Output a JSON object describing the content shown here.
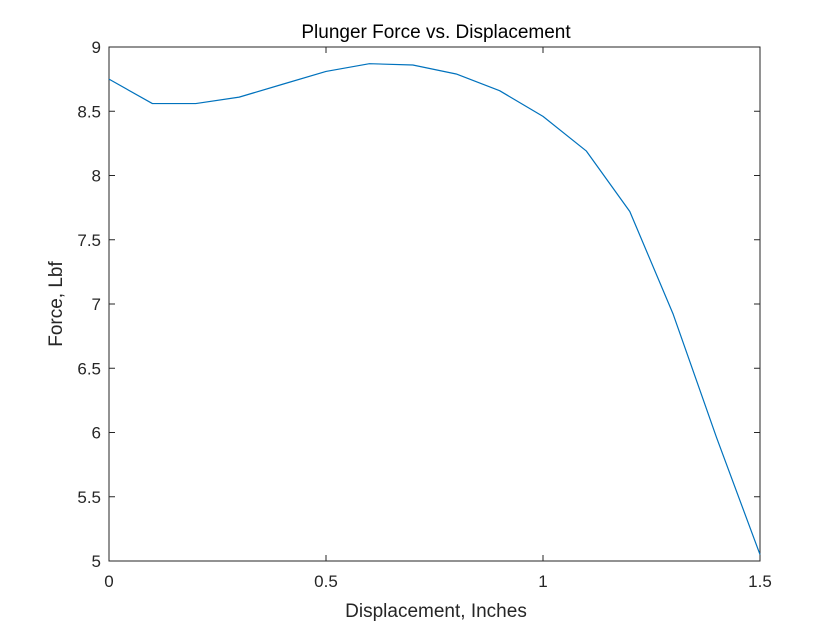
{
  "chart_data": {
    "type": "line",
    "title": "Plunger Force vs. Displacement",
    "xlabel": "Displacement, Inches",
    "ylabel": "Force, Lbf",
    "xlim": [
      0,
      1.5
    ],
    "ylim": [
      5,
      9
    ],
    "xticks": [
      0,
      0.5,
      1,
      1.5
    ],
    "xtick_labels": [
      "0",
      "0.5",
      "1",
      "1.5"
    ],
    "yticks": [
      5,
      5.5,
      6,
      6.5,
      7,
      7.5,
      8,
      8.5,
      9
    ],
    "ytick_labels": [
      "5",
      "5.5",
      "6",
      "6.5",
      "7",
      "7.5",
      "8",
      "8.5",
      "9"
    ],
    "grid": false,
    "line_color": "#0072BD",
    "axis_color": "#262626",
    "series": [
      {
        "x": [
          0,
          0.1,
          0.2,
          0.3,
          0.4,
          0.5,
          0.6,
          0.7,
          0.8,
          0.9,
          1.0,
          1.1,
          1.2,
          1.3,
          1.4,
          1.5
        ],
        "y": [
          8.75,
          8.56,
          8.56,
          8.61,
          8.71,
          8.81,
          8.87,
          8.86,
          8.79,
          8.66,
          8.46,
          8.19,
          7.72,
          6.92,
          5.96,
          5.05
        ]
      }
    ]
  }
}
